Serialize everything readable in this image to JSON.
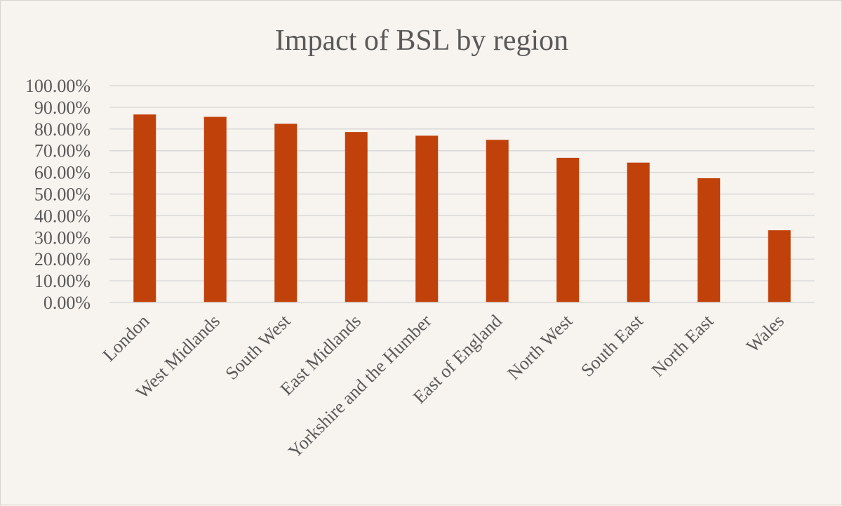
{
  "chart_data": {
    "type": "bar",
    "title": "Impact of BSL by region",
    "xlabel": "",
    "ylabel": "",
    "categories": [
      "London",
      "West Midlands",
      "South West",
      "East Midlands",
      "Yorkshire and the Humber",
      "East of England",
      "North West",
      "South East",
      "North East",
      "Wales"
    ],
    "values": [
      86.7,
      85.6,
      82.4,
      78.6,
      76.9,
      75.0,
      66.7,
      64.5,
      57.3,
      33.3
    ],
    "ylim": [
      0,
      100
    ],
    "yticks": [
      "0.00%",
      "10.00%",
      "20.00%",
      "30.00%",
      "40.00%",
      "50.00%",
      "60.00%",
      "70.00%",
      "80.00%",
      "90.00%",
      "100.00%"
    ],
    "grid": true,
    "legend": "none",
    "bar_color": "#c0410a"
  }
}
